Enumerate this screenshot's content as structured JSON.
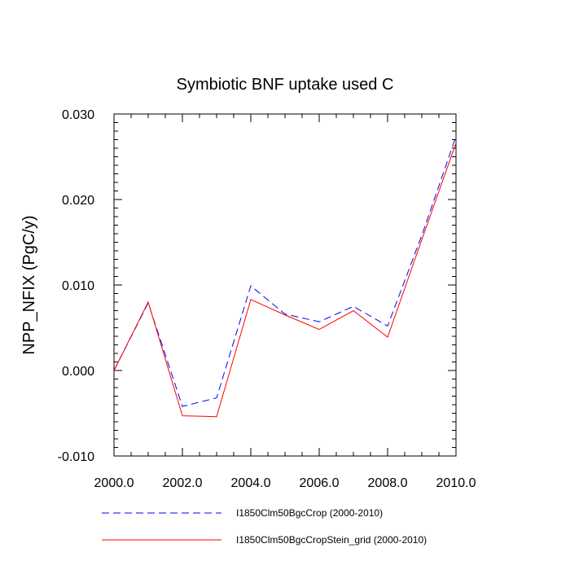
{
  "chart_data": {
    "type": "line",
    "title": "Symbiotic BNF uptake used C",
    "xlabel": "",
    "ylabel": "NPP_NFIX  (PgC/y)",
    "xlim": [
      2000,
      2010
    ],
    "ylim": [
      -0.01,
      0.03
    ],
    "xticks": [
      2000,
      2002,
      2004,
      2006,
      2008,
      2010
    ],
    "xtick_labels": [
      "2000.0",
      "2002.0",
      "2004.0",
      "2006.0",
      "2008.0",
      "2010.0"
    ],
    "yticks": [
      -0.01,
      0.0,
      0.01,
      0.02,
      0.03
    ],
    "ytick_labels": [
      "-0.010",
      "0.000",
      "0.010",
      "0.020",
      "0.030"
    ],
    "x": [
      2000,
      2001,
      2002,
      2003,
      2004,
      2005,
      2006,
      2007,
      2008,
      2009,
      2010
    ],
    "series": [
      {
        "name": "I1850Clm50BgcCrop (2000-2010)",
        "color": "#0000ff",
        "style": "dashed",
        "values": [
          0.0,
          0.0079,
          -0.0042,
          -0.0032,
          0.0099,
          0.0066,
          0.0057,
          0.0075,
          0.0052,
          0.0158,
          0.0274
        ]
      },
      {
        "name": "I1850Clm50BgcCropStein_grid (2000-2010)",
        "color": "#ff0000",
        "style": "solid",
        "values": [
          0.0,
          0.008,
          -0.0053,
          -0.0054,
          0.0083,
          0.0065,
          0.0048,
          0.007,
          0.0039,
          0.0153,
          0.0266
        ]
      }
    ],
    "grid": false,
    "legend_position": "bottom"
  }
}
